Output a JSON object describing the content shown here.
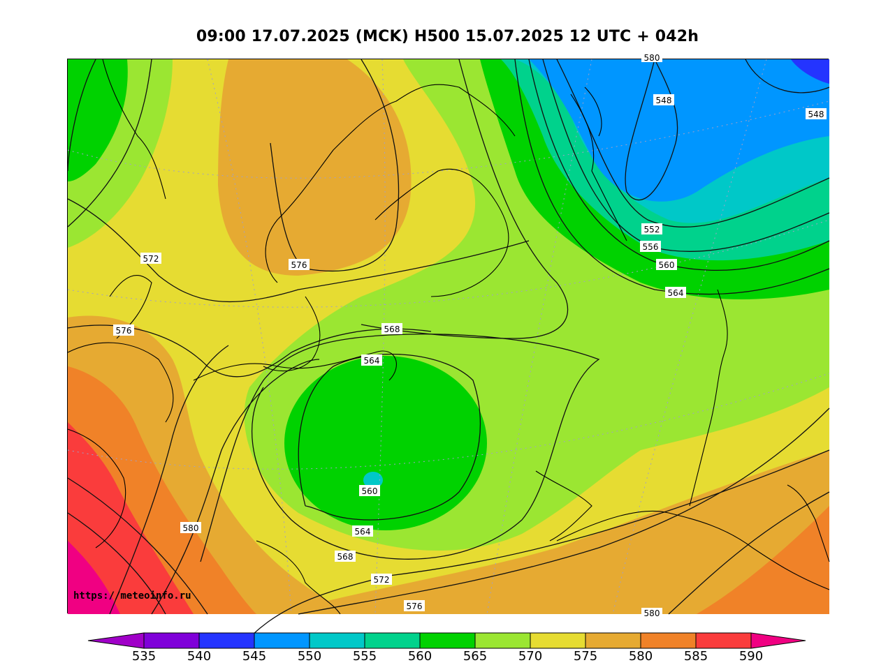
{
  "title": "09:00 17.07.2025 (MCK) H500  15.07.2025 12 UTC + 042h",
  "watermark": "https://meteoinfo.ru",
  "colorbar": {
    "ticks": [
      "535",
      "540",
      "545",
      "550",
      "555",
      "560",
      "565",
      "570",
      "575",
      "580",
      "585",
      "590"
    ],
    "colors": [
      "#7f00d9",
      "#2434ff",
      "#0096ff",
      "#00c8c8",
      "#00d28c",
      "#00d200",
      "#9be632",
      "#e6dc32",
      "#e6aa32",
      "#f08228",
      "#fa3c3c",
      "#f00082"
    ],
    "under_color": "#a000c8",
    "over_color": "#f00082"
  },
  "isohypse_labels": [
    {
      "text": "548"
    },
    {
      "text": "548"
    },
    {
      "text": "552"
    },
    {
      "text": "556"
    },
    {
      "text": "560"
    },
    {
      "text": "564"
    },
    {
      "text": "568"
    },
    {
      "text": "564"
    },
    {
      "text": "560"
    },
    {
      "text": "564"
    },
    {
      "text": "568"
    },
    {
      "text": "572"
    },
    {
      "text": "576"
    },
    {
      "text": "580"
    },
    {
      "text": "576"
    },
    {
      "text": "572"
    },
    {
      "text": "576"
    },
    {
      "text": "580"
    },
    {
      "text": "580"
    }
  ]
}
